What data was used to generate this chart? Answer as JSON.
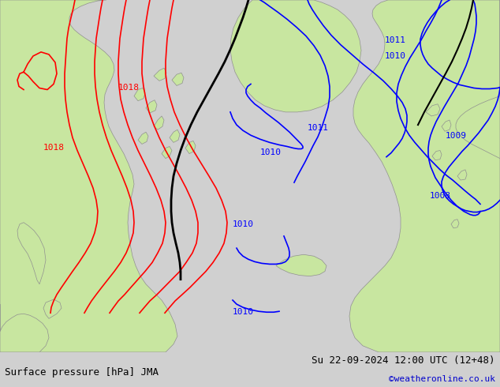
{
  "title_left": "Surface pressure [hPa] JMA",
  "title_right": "Su 22-09-2024 12:00 UTC (12+48)",
  "credit": "©weatheronline.co.uk",
  "credit_color": "#0000cc",
  "land_color": "#c8e6a0",
  "sea_color": "#d0d0d0",
  "border_color": "#909090",
  "fig_width": 6.34,
  "fig_height": 4.9,
  "dpi": 100,
  "blue": "#0000ff",
  "red": "#ff0000",
  "black": "#000000",
  "footer_fontsize": 9,
  "credit_fontsize": 8,
  "label_fontsize": 8
}
